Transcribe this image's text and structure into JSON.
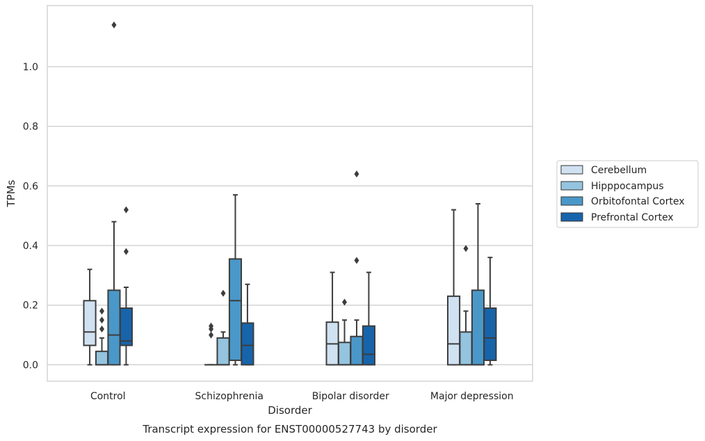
{
  "chart_data": {
    "type": "box",
    "title": "",
    "caption": "Transcript expression for ENST00000527743 by disorder",
    "xlabel": "Disorder",
    "ylabel": "TPMs",
    "ylim": [
      -0.055,
      1.205
    ],
    "yticks": [
      0.0,
      0.2,
      0.4,
      0.6,
      0.8,
      1.0
    ],
    "ytick_labels": [
      "0.0",
      "0.2",
      "0.4",
      "0.6",
      "0.8",
      "1.0"
    ],
    "grid": "horizontal",
    "legend_position": "right",
    "categories": [
      "Control",
      "Schizophrenia",
      "Bipolar disorder",
      "Major depression"
    ],
    "series": [
      {
        "name": "Cerebellum",
        "color": "#d0e1f2",
        "boxes": [
          {
            "min": 0.0,
            "q1": 0.065,
            "median": 0.11,
            "q3": 0.215,
            "max": 0.32,
            "outliers": []
          },
          {
            "min": 0.0,
            "q1": 0.0,
            "median": 0.0,
            "q3": 0.0,
            "max": 0.0,
            "outliers": [
              0.1,
              0.12,
              0.13
            ]
          },
          {
            "min": 0.0,
            "q1": 0.0,
            "median": 0.07,
            "q3": 0.143,
            "max": 0.31,
            "outliers": []
          },
          {
            "min": 0.0,
            "q1": 0.0,
            "median": 0.07,
            "q3": 0.23,
            "max": 0.52,
            "outliers": []
          }
        ]
      },
      {
        "name": "Hipppocampus",
        "color": "#94c4df",
        "boxes": [
          {
            "min": 0.0,
            "q1": 0.0,
            "median": 0.0,
            "q3": 0.045,
            "max": 0.09,
            "outliers": [
              0.12,
              0.15,
              0.18
            ]
          },
          {
            "min": 0.0,
            "q1": 0.0,
            "median": 0.0,
            "q3": 0.09,
            "max": 0.11,
            "outliers": [
              0.24
            ]
          },
          {
            "min": 0.0,
            "q1": 0.0,
            "median": 0.0,
            "q3": 0.075,
            "max": 0.15,
            "outliers": [
              0.21
            ]
          },
          {
            "min": 0.0,
            "q1": 0.0,
            "median": 0.0,
            "q3": 0.11,
            "max": 0.18,
            "outliers": [
              0.39
            ]
          }
        ]
      },
      {
        "name": "Orbitofontal Cortex",
        "color": "#4a98c9",
        "boxes": [
          {
            "min": 0.0,
            "q1": 0.0,
            "median": 0.1,
            "q3": 0.25,
            "max": 0.48,
            "outliers": [
              1.14
            ]
          },
          {
            "min": 0.0,
            "q1": 0.015,
            "median": 0.215,
            "q3": 0.355,
            "max": 0.57,
            "outliers": []
          },
          {
            "min": 0.0,
            "q1": 0.0,
            "median": 0.0,
            "q3": 0.095,
            "max": 0.15,
            "outliers": [
              0.35,
              0.64
            ]
          },
          {
            "min": 0.0,
            "q1": 0.0,
            "median": 0.0,
            "q3": 0.25,
            "max": 0.54,
            "outliers": []
          }
        ]
      },
      {
        "name": "Prefrontal Cortex",
        "color": "#1764ab",
        "boxes": [
          {
            "min": 0.0,
            "q1": 0.065,
            "median": 0.08,
            "q3": 0.19,
            "max": 0.26,
            "outliers": [
              0.38,
              0.52
            ]
          },
          {
            "min": 0.0,
            "q1": 0.0,
            "median": 0.065,
            "q3": 0.14,
            "max": 0.27,
            "outliers": []
          },
          {
            "min": 0.0,
            "q1": 0.0,
            "median": 0.035,
            "q3": 0.13,
            "max": 0.31,
            "outliers": []
          },
          {
            "min": 0.0,
            "q1": 0.015,
            "median": 0.09,
            "q3": 0.19,
            "max": 0.36,
            "outliers": []
          }
        ]
      }
    ]
  }
}
